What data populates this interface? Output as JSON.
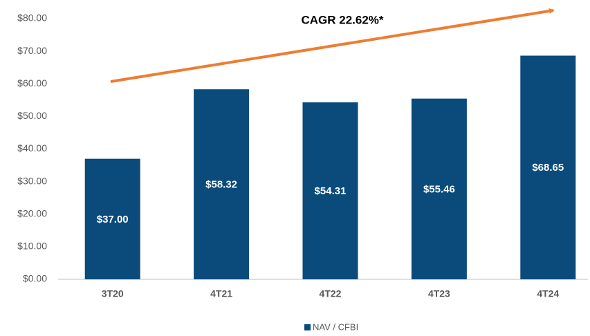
{
  "chart_data": {
    "type": "bar",
    "categories": [
      "3T20",
      "4T21",
      "4T22",
      "4T23",
      "4T24"
    ],
    "values": [
      37.0,
      58.32,
      54.31,
      55.46,
      68.65
    ],
    "value_labels": [
      "$37.00",
      "$58.32",
      "$54.31",
      "$55.46",
      "$68.65"
    ],
    "color": "#0a4b7c",
    "ylim": [
      0,
      80
    ],
    "yticks": [
      {
        "value": 0,
        "label": "$0.00"
      },
      {
        "value": 10,
        "label": "$10.00"
      },
      {
        "value": 20,
        "label": "$20.00"
      },
      {
        "value": 30,
        "label": "$30.00"
      },
      {
        "value": 40,
        "label": "$40.00"
      },
      {
        "value": 50,
        "label": "$50.00"
      },
      {
        "value": 60,
        "label": "$60.00"
      },
      {
        "value": 70,
        "label": "$70.00"
      },
      {
        "value": 80,
        "label": "$80.00"
      }
    ],
    "annotation": "CAGR 22.62%*",
    "series_name": "NAV / CFBI",
    "legend": "bottom"
  }
}
